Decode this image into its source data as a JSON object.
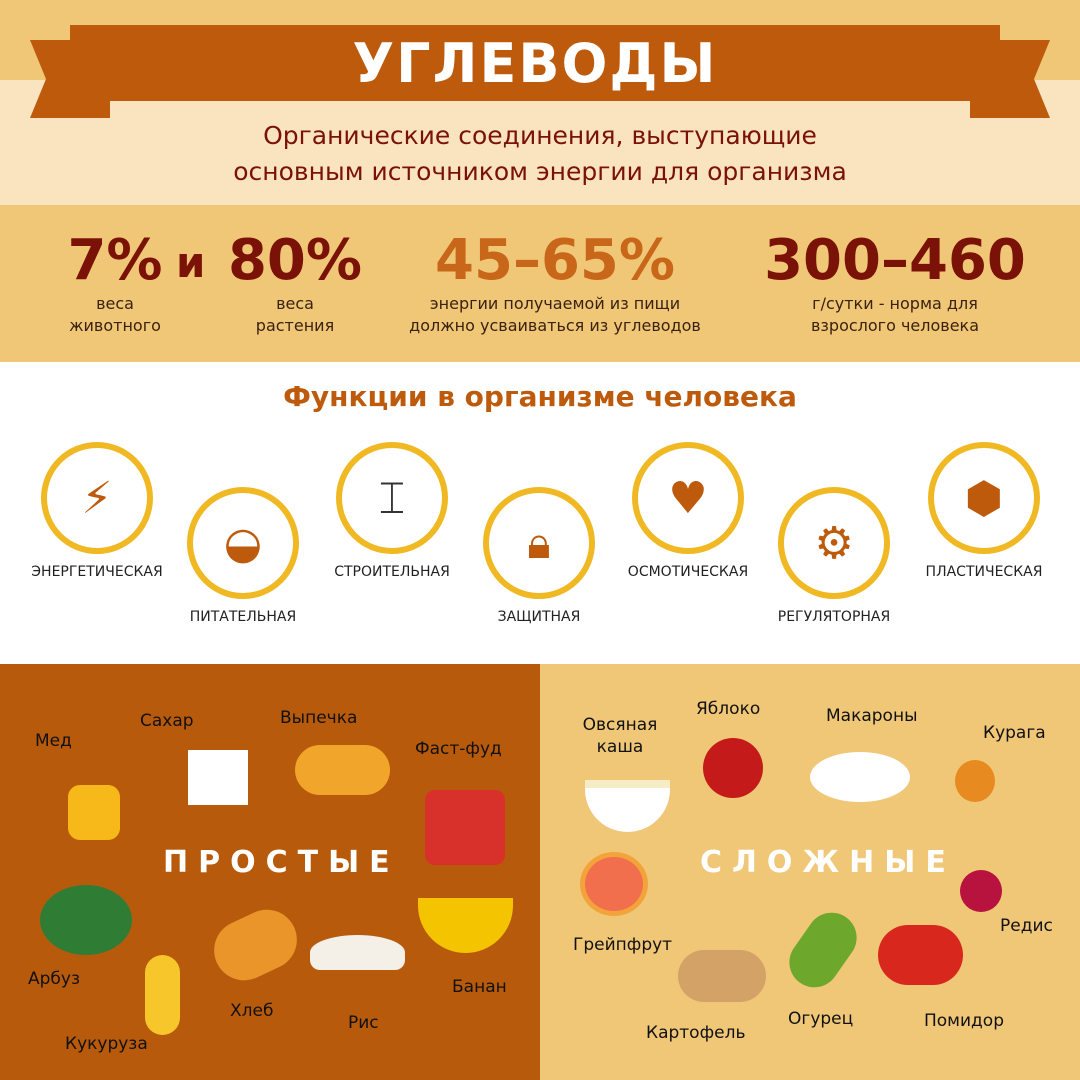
{
  "title": "УГЛЕВОДЫ",
  "subtitle": [
    "Органические соединения, выступающие",
    "основным источником энергии для организма"
  ],
  "stats": {
    "s1": {
      "value": "7%",
      "caption": [
        "веса",
        "животного"
      ]
    },
    "and": "и",
    "s2": {
      "value": "80%",
      "caption": [
        "веса",
        "растения"
      ]
    },
    "s3": {
      "value": "45–65%",
      "caption": [
        "энергии получаемой из пищи",
        "должно усваиваться из углеводов"
      ]
    },
    "s4": {
      "value": "300–460",
      "caption": [
        "г/сутки - норма для",
        "взрослого человека"
      ]
    }
  },
  "functions": {
    "title": "Функции в организме человека",
    "items": [
      {
        "label": "ЭНЕРГЕТИЧЕСКАЯ",
        "icon": "phone-charger-icon"
      },
      {
        "label": "ПИТАТЕЛЬНАЯ",
        "icon": "plate-fork-spoon-icon"
      },
      {
        "label": "СТРОИТЕЛЬНАЯ",
        "icon": "crane-icon"
      },
      {
        "label": "ЗАЩИТНАЯ",
        "icon": "padlock-icon"
      },
      {
        "label": "ОСМОТИЧЕСКАЯ",
        "icon": "heart-icon"
      },
      {
        "label": "РЕГУЛЯТОРНАЯ",
        "icon": "screwdriver-gear-icon"
      },
      {
        "label": "ПЛАСТИЧЕСКАЯ",
        "icon": "molecule-icon"
      }
    ]
  },
  "simple": {
    "title": "ПРОСТЫЕ",
    "items": [
      "Мед",
      "Сахар",
      "Выпечка",
      "Фаст-фуд",
      "Арбуз",
      "Кукуруза",
      "Хлеб",
      "Рис",
      "Банан"
    ]
  },
  "complex": {
    "title": "СЛОЖНЫЕ",
    "items": [
      "Овсяная каша",
      "Яблоко",
      "Макароны",
      "Курага",
      "Грейпфрут",
      "Картофель",
      "Огурец",
      "Помидор",
      "Редис"
    ]
  },
  "colors": {
    "banner": "#bd5a0b",
    "dark_red": "#7a1207",
    "orange": "#c8661a",
    "sand": "#f0c677",
    "cream": "#fae3bf",
    "ring": "#f0b823"
  }
}
